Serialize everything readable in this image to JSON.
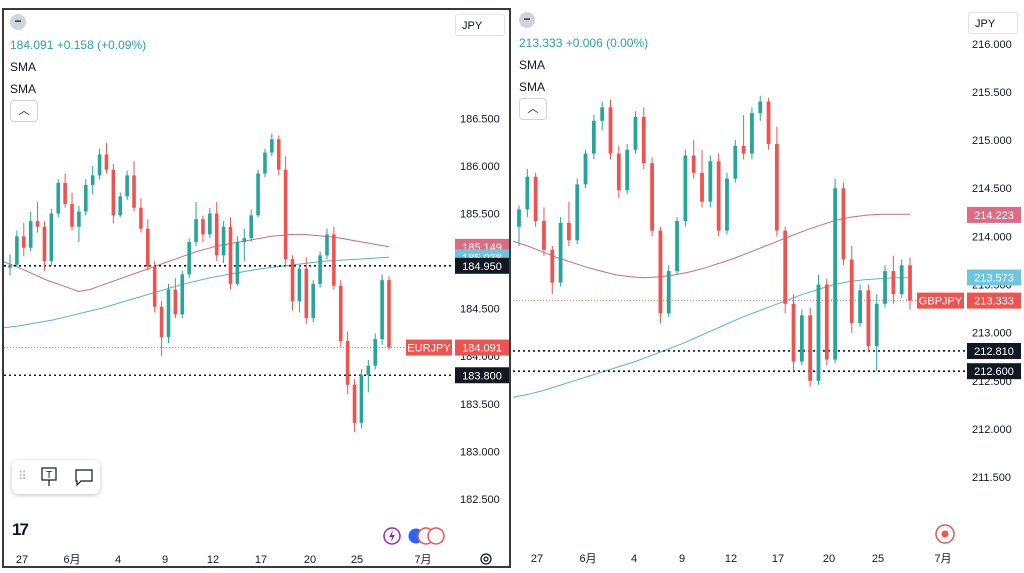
{
  "chart_data": [
    {
      "type": "candlestick",
      "symbol_label": "EURJPY",
      "currency": "JPY",
      "legend": {
        "price": "184.091",
        "change": "+0.158 (+0.09%)",
        "indicators": [
          "SMA",
          "SMA"
        ]
      },
      "y_ticks": [
        "186.500",
        "186.000",
        "185.500",
        "184.500",
        "184.000",
        "183.500",
        "183.000",
        "182.500"
      ],
      "ylim": [
        182.3,
        186.85
      ],
      "x_ticks": [
        "27",
        "6月",
        "4",
        "9",
        "12",
        "17",
        "20",
        "25",
        "7月"
      ],
      "last_price": 184.091,
      "price_tags": [
        {
          "text": "185.149",
          "value": 185.149,
          "color": "#e06a84"
        },
        {
          "text": "185.038",
          "value": 185.038,
          "color": "#6cc6e0"
        },
        {
          "text": "184.950",
          "value": 184.95,
          "color": "#131722"
        },
        {
          "text": "184.091",
          "value": 184.091,
          "color": "#ef5350"
        },
        {
          "text": "183.800",
          "value": 183.8,
          "color": "#131722"
        }
      ],
      "levels": [
        184.95,
        183.8
      ],
      "ohlc": [
        [
          184.93,
          185.07,
          184.85,
          184.96
        ],
        [
          184.96,
          185.32,
          184.94,
          185.26
        ],
        [
          185.26,
          185.4,
          185.05,
          185.14
        ],
        [
          185.14,
          185.52,
          185.1,
          185.42
        ],
        [
          185.42,
          185.62,
          185.3,
          185.36
        ],
        [
          185.36,
          185.42,
          184.9,
          185.0
        ],
        [
          185.0,
          185.55,
          184.95,
          185.5
        ],
        [
          185.5,
          185.86,
          185.46,
          185.82
        ],
        [
          185.82,
          185.92,
          185.56,
          185.6
        ],
        [
          185.6,
          185.72,
          185.32,
          185.36
        ],
        [
          185.36,
          185.58,
          185.2,
          185.52
        ],
        [
          185.52,
          185.86,
          185.48,
          185.8
        ],
        [
          185.8,
          186.0,
          185.7,
          185.9
        ],
        [
          185.9,
          186.18,
          185.86,
          186.12
        ],
        [
          186.12,
          186.24,
          185.92,
          185.96
        ],
        [
          185.96,
          186.02,
          185.4,
          185.48
        ],
        [
          185.48,
          185.72,
          185.46,
          185.68
        ],
        [
          185.68,
          185.95,
          185.64,
          185.9
        ],
        [
          185.9,
          186.05,
          185.52,
          185.56
        ],
        [
          185.56,
          185.66,
          185.3,
          185.34
        ],
        [
          185.34,
          185.44,
          184.9,
          184.94
        ],
        [
          184.94,
          185.0,
          184.46,
          184.52
        ],
        [
          184.52,
          184.58,
          184.0,
          184.2
        ],
        [
          184.2,
          184.76,
          184.14,
          184.7
        ],
        [
          184.7,
          184.82,
          184.4,
          184.44
        ],
        [
          184.44,
          184.9,
          184.4,
          184.86
        ],
        [
          184.86,
          185.24,
          184.82,
          185.2
        ],
        [
          185.2,
          185.62,
          185.16,
          185.44
        ],
        [
          185.44,
          185.48,
          185.2,
          185.28
        ],
        [
          185.28,
          185.56,
          185.24,
          185.5
        ],
        [
          185.5,
          185.62,
          185.0,
          185.06
        ],
        [
          185.06,
          185.42,
          184.98,
          185.36
        ],
        [
          185.36,
          185.46,
          184.7,
          184.76
        ],
        [
          184.76,
          185.26,
          184.74,
          185.2
        ],
        [
          185.2,
          185.34,
          185.0,
          185.24
        ],
        [
          185.24,
          185.54,
          185.2,
          185.48
        ],
        [
          185.48,
          185.96,
          185.46,
          185.92
        ],
        [
          185.92,
          186.18,
          185.88,
          186.14
        ],
        [
          186.14,
          186.34,
          186.1,
          186.28
        ],
        [
          186.28,
          186.32,
          185.9,
          185.96
        ],
        [
          185.96,
          186.1,
          184.94,
          185.02
        ],
        [
          185.02,
          185.06,
          184.48,
          184.58
        ],
        [
          184.58,
          184.96,
          184.46,
          184.92
        ],
        [
          184.92,
          185.04,
          184.34,
          184.4
        ],
        [
          184.4,
          184.8,
          184.36,
          184.76
        ],
        [
          184.76,
          185.1,
          184.72,
          185.06
        ],
        [
          185.06,
          185.34,
          185.02,
          185.28
        ],
        [
          185.28,
          185.36,
          184.7,
          184.74
        ],
        [
          184.74,
          184.8,
          184.1,
          184.16
        ],
        [
          184.16,
          184.26,
          183.6,
          183.7
        ],
        [
          183.7,
          183.76,
          183.2,
          183.3
        ],
        [
          183.3,
          183.86,
          183.24,
          183.8
        ],
        [
          183.8,
          183.96,
          183.62,
          183.9
        ],
        [
          183.9,
          184.24,
          183.86,
          184.18
        ],
        [
          184.18,
          184.86,
          184.12,
          184.8
        ],
        [
          184.8,
          184.84,
          184.06,
          184.091
        ]
      ],
      "sma_long": [
        184.99,
        184.95,
        184.9,
        184.85,
        184.8,
        184.76,
        184.72,
        184.68,
        184.7,
        184.74,
        184.78,
        184.82,
        184.86,
        184.9,
        184.94,
        184.98,
        185.02,
        185.06,
        185.1,
        185.13,
        185.16,
        185.18,
        185.2,
        185.22,
        185.24,
        185.26,
        185.27,
        185.28,
        185.28,
        185.27,
        185.26,
        185.25,
        185.23,
        185.21,
        185.19,
        185.17,
        185.15
      ],
      "sma_short": [
        184.3,
        184.32,
        184.35,
        184.38,
        184.42,
        184.46,
        184.5,
        184.55,
        184.6,
        184.65,
        184.7,
        184.75,
        184.79,
        184.83,
        184.86,
        184.89,
        184.92,
        184.94,
        184.96,
        184.98,
        185.0,
        185.01,
        185.02,
        185.03,
        185.04
      ],
      "sma_long_color": "#d06b7e",
      "sma_short_color": "#56b4d6"
    },
    {
      "type": "candlestick",
      "symbol_label": "GBPJPY",
      "currency": "JPY",
      "legend": {
        "price": "213.333",
        "change": "+0.006 (0.00%)",
        "indicators": [
          "SMA",
          "SMA"
        ]
      },
      "y_ticks": [
        "216.000",
        "215.500",
        "215.000",
        "214.500",
        "214.000",
        "213.500",
        "213.000",
        "212.500",
        "212.000",
        "211.500"
      ],
      "ylim": [
        211.2,
        216.05
      ],
      "x_ticks": [
        "27",
        "6月",
        "4",
        "9",
        "12",
        "17",
        "20",
        "25",
        "7月"
      ],
      "last_price": 213.333,
      "price_tags": [
        {
          "text": "214.223",
          "value": 214.223,
          "color": "#e06a84"
        },
        {
          "text": "213.573",
          "value": 213.573,
          "color": "#6cc6e0"
        },
        {
          "text": "213.333",
          "value": 213.333,
          "color": "#ef5350"
        },
        {
          "text": "212.810",
          "value": 212.81,
          "color": "#131722"
        },
        {
          "text": "212.600",
          "value": 212.6,
          "color": "#131722"
        }
      ],
      "levels": [
        212.81,
        212.6
      ],
      "ohlc": [
        [
          214.1,
          214.32,
          213.9,
          214.28
        ],
        [
          214.28,
          214.7,
          214.2,
          214.62
        ],
        [
          214.62,
          214.66,
          214.1,
          214.16
        ],
        [
          214.16,
          214.3,
          213.8,
          213.86
        ],
        [
          213.86,
          213.9,
          213.4,
          213.52
        ],
        [
          213.52,
          214.2,
          213.48,
          214.14
        ],
        [
          214.14,
          214.36,
          213.9,
          213.96
        ],
        [
          213.96,
          214.6,
          213.92,
          214.54
        ],
        [
          214.54,
          214.9,
          214.5,
          214.86
        ],
        [
          214.86,
          215.26,
          214.8,
          215.2
        ],
        [
          215.2,
          215.4,
          215.1,
          215.34
        ],
        [
          215.34,
          215.42,
          214.8,
          214.86
        ],
        [
          214.86,
          214.94,
          214.4,
          214.48
        ],
        [
          214.48,
          214.96,
          214.44,
          214.9
        ],
        [
          214.9,
          215.3,
          214.86,
          215.24
        ],
        [
          215.24,
          215.34,
          214.7,
          214.76
        ],
        [
          214.76,
          214.82,
          214.0,
          214.06
        ],
        [
          214.06,
          214.1,
          213.1,
          213.2
        ],
        [
          213.2,
          213.7,
          213.16,
          213.64
        ],
        [
          213.64,
          214.2,
          213.6,
          214.16
        ],
        [
          214.16,
          214.9,
          214.1,
          214.84
        ],
        [
          214.84,
          215.0,
          214.6,
          214.66
        ],
        [
          214.66,
          214.9,
          214.3,
          214.36
        ],
        [
          214.36,
          214.84,
          214.3,
          214.78
        ],
        [
          214.78,
          214.86,
          214.0,
          214.06
        ],
        [
          214.06,
          214.66,
          214.02,
          214.6
        ],
        [
          214.6,
          215.0,
          214.56,
          214.94
        ],
        [
          214.94,
          215.26,
          214.8,
          214.86
        ],
        [
          214.86,
          215.34,
          214.8,
          215.28
        ],
        [
          215.28,
          215.46,
          215.2,
          215.4
        ],
        [
          215.4,
          215.44,
          214.9,
          214.96
        ],
        [
          214.96,
          215.14,
          214.0,
          214.06
        ],
        [
          214.06,
          214.1,
          213.2,
          213.3
        ],
        [
          213.3,
          213.4,
          212.6,
          212.7
        ],
        [
          212.7,
          213.24,
          212.66,
          213.18
        ],
        [
          213.18,
          213.26,
          212.44,
          212.5
        ],
        [
          212.5,
          213.6,
          212.46,
          213.5
        ],
        [
          213.5,
          213.56,
          212.66,
          212.72
        ],
        [
          212.72,
          214.6,
          212.68,
          214.5
        ],
        [
          214.5,
          214.56,
          213.7,
          213.76
        ],
        [
          213.76,
          213.9,
          213.0,
          213.1
        ],
        [
          213.1,
          213.5,
          213.06,
          213.44
        ],
        [
          213.44,
          213.5,
          212.8,
          212.86
        ],
        [
          212.86,
          213.4,
          212.6,
          213.3
        ],
        [
          213.3,
          213.7,
          213.26,
          213.64
        ],
        [
          213.64,
          213.8,
          213.3,
          213.4
        ],
        [
          213.4,
          213.76,
          213.36,
          213.7
        ],
        [
          213.7,
          213.78,
          213.24,
          213.333
        ]
      ],
      "sma_long": [
        213.95,
        213.9,
        213.84,
        213.78,
        213.73,
        213.68,
        213.64,
        213.6,
        213.58,
        213.57,
        213.58,
        213.6,
        213.63,
        213.67,
        213.72,
        213.77,
        213.83,
        213.89,
        213.95,
        214.01,
        214.07,
        214.12,
        214.17,
        214.2,
        214.22,
        214.23,
        214.23,
        214.23
      ],
      "sma_short": [
        212.33,
        212.36,
        212.4,
        212.45,
        212.5,
        212.55,
        212.6,
        212.65,
        212.7,
        212.76,
        212.82,
        212.88,
        212.95,
        213.02,
        213.09,
        213.16,
        213.22,
        213.28,
        213.34,
        213.4,
        213.45,
        213.5,
        213.53,
        213.55,
        213.56,
        213.57,
        213.57
      ],
      "sma_long_color": "#d06b7e",
      "sma_short_color": "#56b4d6"
    }
  ]
}
